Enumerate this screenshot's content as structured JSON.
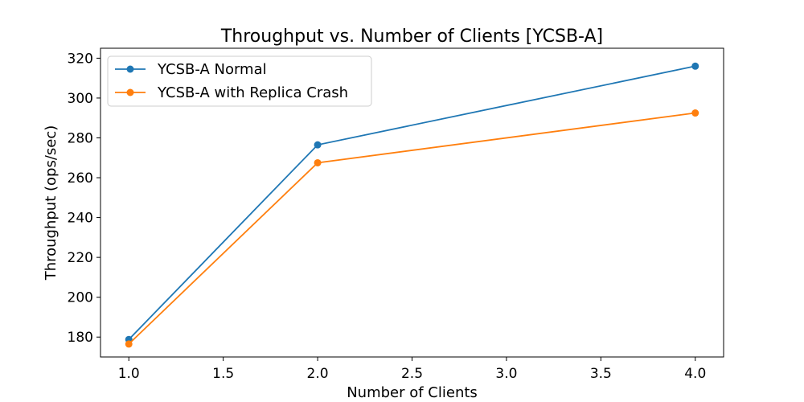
{
  "chart_data": {
    "type": "line",
    "title": "Throughput vs. Number of Clients [YCSB-A]",
    "xlabel": "Number of Clients",
    "ylabel": "Throughput (ops/sec)",
    "x": [
      1.0,
      2.0,
      4.0
    ],
    "xlim": [
      0.85,
      4.15
    ],
    "ylim": [
      170,
      325
    ],
    "xticks": [
      1.0,
      1.5,
      2.0,
      2.5,
      3.0,
      3.5,
      4.0
    ],
    "xtick_labels": [
      "1.0",
      "1.5",
      "2.0",
      "2.5",
      "3.0",
      "3.5",
      "4.0"
    ],
    "yticks": [
      180,
      200,
      220,
      240,
      260,
      280,
      300,
      320
    ],
    "ytick_labels": [
      "180",
      "200",
      "220",
      "240",
      "260",
      "280",
      "300",
      "320"
    ],
    "grid": false,
    "legend_position": "upper-left",
    "series": [
      {
        "name": "YCSB-A Normal",
        "color": "#1f77b4",
        "values": [
          178.8,
          276.5,
          316.0
        ]
      },
      {
        "name": "YCSB-A with Replica Crash",
        "color": "#ff7f0e",
        "values": [
          176.5,
          267.5,
          292.5
        ]
      }
    ]
  }
}
